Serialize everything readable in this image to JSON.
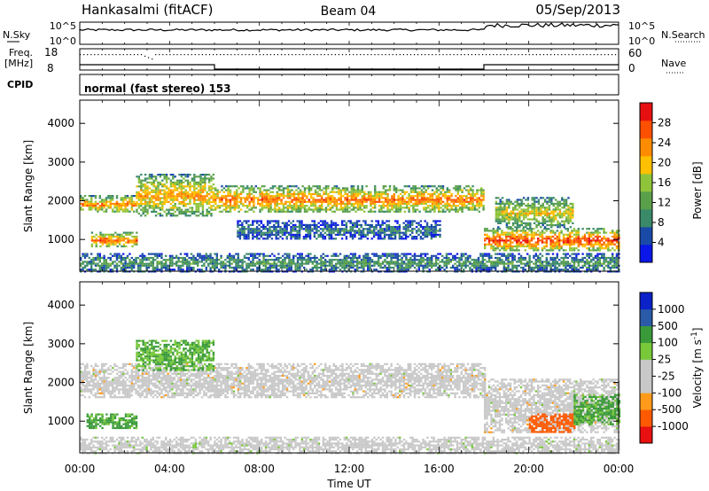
{
  "header": {
    "station": "Hankasalmi (fitACF)",
    "beam": "Beam 04",
    "date": "05/Sep/2013"
  },
  "top_panels": {
    "nsky": {
      "label": "N.Sky",
      "ticks": [
        "10^5",
        "10^0"
      ]
    },
    "nsearch": {
      "label": "N.Search",
      "ticks": [
        "10^5",
        "10^0"
      ]
    },
    "freq": {
      "label": "Freq.",
      "unit": "[MHz]",
      "ticks": [
        "18",
        "8"
      ]
    },
    "nave": {
      "label": "Nave",
      "ticks": [
        "60",
        "0"
      ]
    },
    "cpid": {
      "label": "CPID",
      "value": "normal (fast stereo) 153"
    }
  },
  "colors": {
    "power": [
      "#0a17e8",
      "#1a4aa8",
      "#3a8a6a",
      "#5aa04a",
      "#8fc43a",
      "#ffc000",
      "#ff8c00",
      "#ff5000",
      "#e61010"
    ],
    "velocity": [
      "#e81010",
      "#ff5a00",
      "#ff9a1a",
      "#c8c8c8",
      "#c8c8c8",
      "#78c83a",
      "#3a9a3a",
      "#2a5aa8",
      "#0a22c8"
    ]
  },
  "chart_data": [
    {
      "type": "heatmap",
      "name": "power",
      "ylabel": "Slant Range [km]",
      "ylim": [
        180,
        4600
      ],
      "yticks": [
        1000,
        2000,
        3000,
        4000
      ],
      "xlim": [
        0,
        24
      ],
      "colorbar": {
        "label": "Power [dB]",
        "range": [
          0,
          32
        ],
        "ticks": [
          4,
          8,
          12,
          16,
          20,
          24,
          28
        ]
      },
      "bands": [
        {
          "x": [
            0,
            2.5
          ],
          "range": [
            1700,
            2150
          ],
          "level": 0.75
        },
        {
          "x": [
            0.5,
            2.5
          ],
          "range": [
            800,
            1200
          ],
          "level": 0.8
        },
        {
          "x": [
            2.5,
            6
          ],
          "range": [
            1600,
            2700
          ],
          "level": 0.7
        },
        {
          "x": [
            6,
            18
          ],
          "range": [
            1700,
            2400
          ],
          "level": 0.78
        },
        {
          "x": [
            18,
            24
          ],
          "range": [
            700,
            1300
          ],
          "level": 0.88
        },
        {
          "x": [
            18.5,
            22
          ],
          "range": [
            1300,
            2100
          ],
          "level": 0.6
        },
        {
          "x": [
            0,
            24
          ],
          "range": [
            180,
            650
          ],
          "level": 0.35
        },
        {
          "x": [
            7,
            16
          ],
          "range": [
            1000,
            1500
          ],
          "level": 0.25
        }
      ]
    },
    {
      "type": "heatmap",
      "name": "velocity",
      "ylabel": "Slant Range [km]",
      "ylim": [
        180,
        4600
      ],
      "yticks": [
        1000,
        2000,
        3000,
        4000
      ],
      "xlim": [
        0,
        24
      ],
      "xlabel": "Time UT",
      "xticks": [
        "00:00",
        "04:00",
        "08:00",
        "12:00",
        "16:00",
        "20:00",
        "00:00"
      ],
      "colorbar": {
        "label": "Velocity [m s^-1]",
        "ticks": [
          "1000",
          "500",
          "100",
          "25",
          "-25",
          "-100",
          "-500",
          "-1000"
        ]
      },
      "bands": [
        {
          "x": [
            0,
            18
          ],
          "range": [
            1600,
            2500
          ],
          "v": 0
        },
        {
          "x": [
            0.3,
            2.5
          ],
          "range": [
            800,
            1200
          ],
          "v": 200
        },
        {
          "x": [
            2.5,
            6
          ],
          "range": [
            2300,
            3100
          ],
          "v": 150
        },
        {
          "x": [
            18,
            24
          ],
          "range": [
            700,
            2100
          ],
          "v": 0
        },
        {
          "x": [
            20,
            22
          ],
          "range": [
            700,
            1200
          ],
          "v": -300
        },
        {
          "x": [
            22,
            24
          ],
          "range": [
            900,
            1700
          ],
          "v": 200
        },
        {
          "x": [
            0,
            24
          ],
          "range": [
            180,
            600
          ],
          "v": 50
        }
      ]
    }
  ]
}
